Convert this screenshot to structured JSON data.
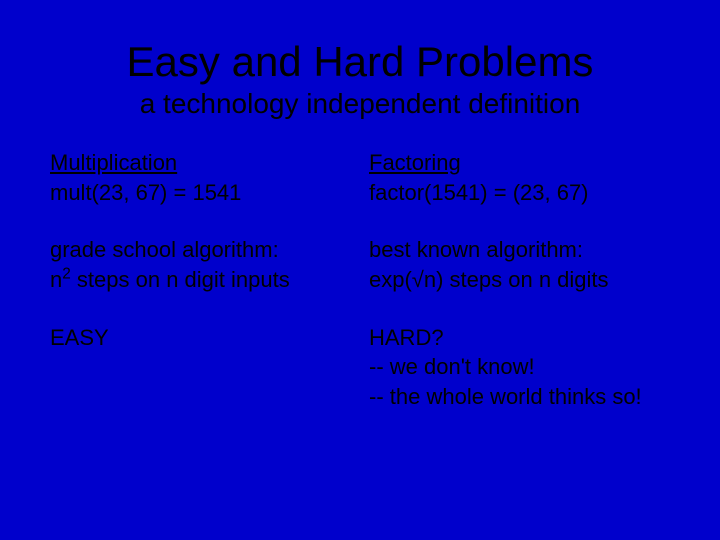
{
  "background_color": "#0000cc",
  "text_color": "#000000",
  "font_family": "Comic Sans MS",
  "title": {
    "text": "Easy and Hard Problems",
    "fontsize": 42
  },
  "subtitle": {
    "text": "a technology independent definition",
    "fontsize": 28
  },
  "body_fontsize": 22,
  "left": {
    "heading": "Multiplication",
    "example": "mult(23, 67) = 1541",
    "algo_line1": "grade school algorithm:",
    "algo_prefix": "n",
    "algo_sup": "2",
    "algo_suffix": " steps on n digit inputs",
    "verdict": "EASY"
  },
  "right": {
    "heading": "Factoring",
    "example": "factor(1541) = (23, 67)",
    "algo_line1": "best known algorithm:",
    "algo_line2": "exp(√n) steps on n digits",
    "verdict": "HARD?",
    "note1": "-- we don't know!",
    "note2": "-- the whole world thinks so!"
  }
}
